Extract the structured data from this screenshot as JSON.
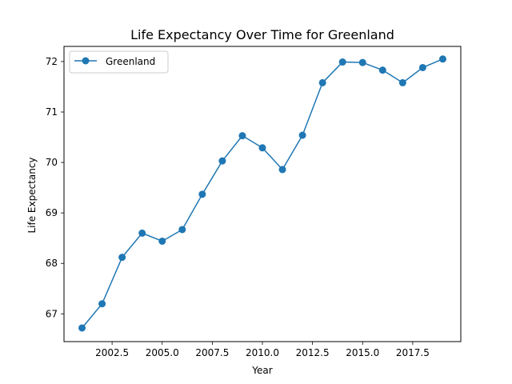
{
  "chart_data": {
    "type": "line",
    "title": "Life Expectancy Over Time for Greenland",
    "xlabel": "Year",
    "ylabel": "Life Expectancy",
    "xlim": [
      2000.1,
      2019.9
    ],
    "ylim": [
      66.45,
      72.3
    ],
    "xticks": [
      2002.5,
      2005.0,
      2007.5,
      2010.0,
      2012.5,
      2015.0,
      2017.5
    ],
    "xtick_labels": [
      "2002.5",
      "2005.0",
      "2007.5",
      "2010.0",
      "2012.5",
      "2015.0",
      "2017.5"
    ],
    "yticks": [
      67,
      68,
      69,
      70,
      71,
      72
    ],
    "ytick_labels": [
      "67",
      "68",
      "69",
      "70",
      "71",
      "72"
    ],
    "grid": false,
    "legend_position": "top-left",
    "series": [
      {
        "name": "Greenland",
        "color": "#1f77b4",
        "marker": "circle",
        "x": [
          2001,
          2002,
          2003,
          2004,
          2005,
          2006,
          2007,
          2008,
          2009,
          2010,
          2011,
          2012,
          2013,
          2014,
          2015,
          2016,
          2017,
          2018,
          2019
        ],
        "y": [
          66.72,
          67.2,
          68.12,
          68.6,
          68.44,
          68.67,
          69.37,
          70.03,
          70.53,
          70.29,
          69.86,
          70.54,
          71.58,
          71.99,
          71.98,
          71.83,
          71.58,
          71.88,
          72.05
        ]
      }
    ]
  }
}
